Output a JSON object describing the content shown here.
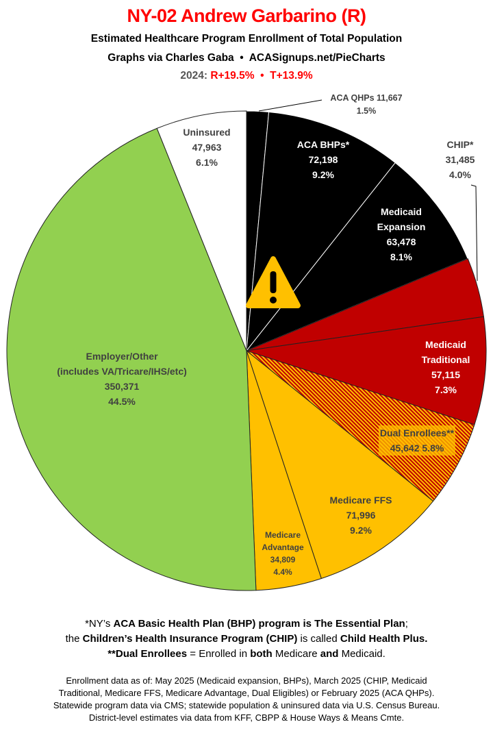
{
  "header": {
    "title": "NY-02 Andrew Garbarino (R)",
    "subtitle": "Estimated Healthcare Program Enrollment of Total Population",
    "credit": "Graphs via Charles Gaba  •  ACASignups.net/PieCharts",
    "year_label": "2024:",
    "margins": "R+19.5%  •  T+13.9%"
  },
  "chart_data": {
    "type": "pie",
    "start": "top, clockwise",
    "slices": [
      {
        "label": "ACA QHPs",
        "value": 11667,
        "percent": "1.5%",
        "value_text": "11,667",
        "color": "#000000"
      },
      {
        "label": "ACA BHPs*",
        "value": 72198,
        "percent": "9.2%",
        "value_text": "72,198",
        "color": "#000000"
      },
      {
        "label": "Medicaid Expansion",
        "value": 63478,
        "percent": "8.1%",
        "value_text": "63,478",
        "color": "#000000"
      },
      {
        "label": "CHIP*",
        "value": 31485,
        "percent": "4.0%",
        "value_text": "31,485",
        "color": "#c00000"
      },
      {
        "label": "Medicaid Traditional",
        "value": 57115,
        "percent": "7.3%",
        "value_text": "57,115",
        "color": "#c00000"
      },
      {
        "label": "Dual Enrollees**",
        "value": 45642,
        "percent": "5.8%",
        "value_text": "45,642",
        "color": "hatched #c00000/#ffc000"
      },
      {
        "label": "Medicare FFS",
        "value": 71996,
        "percent": "9.2%",
        "value_text": "71,996",
        "color": "#ffc000"
      },
      {
        "label": "Medicare Advantage",
        "value": 34809,
        "percent": "4.4%",
        "value_text": "34,809",
        "color": "#ffc000"
      },
      {
        "label": "Employer/Other (includes VA/Tricare/IHS/etc)",
        "value": 350371,
        "percent": "44.5%",
        "value_text": "350,371",
        "color": "#92d050"
      },
      {
        "label": "Uninsured",
        "value": 47963,
        "percent": "6.1%",
        "value_text": "47,963",
        "color": "#ffffff"
      }
    ],
    "annotation_icon": "warning-triangle-icon"
  },
  "labels": {
    "qhp_name": "ACA QHPs 11,667",
    "qhp_pct": "1.5%",
    "bhp_name": "ACA BHPs*",
    "bhp_val": "72,198",
    "bhp_pct": "9.2%",
    "chip_name": "CHIP*",
    "chip_val": "31,485",
    "chip_pct": "4.0%",
    "exp_name1": "Medicaid",
    "exp_name2": "Expansion",
    "exp_val": "63,478",
    "exp_pct": "8.1%",
    "trad_name1": "Medicaid",
    "trad_name2": "Traditional",
    "trad_val": "57,115",
    "trad_pct": "7.3%",
    "dual_name": "Dual Enrollees**",
    "dual_val": "45,642 5.8%",
    "ffs_name": "Medicare FFS",
    "ffs_val": "71,996",
    "ffs_pct": "9.2%",
    "ma_name1": "Medicare",
    "ma_name2": "Advantage",
    "ma_val": "34,809",
    "ma_pct": "4.4%",
    "emp_name1": "Employer/Other",
    "emp_name2": "(includes VA/Tricare/IHS/etc)",
    "emp_val": "350,371",
    "emp_pct": "44.5%",
    "unins_name": "Uninsured",
    "unins_val": "47,963",
    "unins_pct": "6.1%"
  },
  "notes": {
    "l1a": "*NY’s ",
    "l1b": "ACA Basic Health Plan (BHP) program is The Essential Plan",
    ";": ";",
    "l2a": "the ",
    "l2b": "Children’s Health Insurance Program (CHIP)",
    "l2c": " is called ",
    "l2d": "Child Health Plus.",
    "l3a": "**Dual Enrollees",
    "l3b": " = Enrolled in ",
    "l3c": "both",
    "l3d": " Medicare ",
    "l3e": "and",
    "l3f": " Medicaid."
  },
  "sources": [
    "Enrollment data as of: May 2025 (Medicaid expansion, BHPs), March 2025 (CHIP, Medicaid",
    "Traditional, Medicare FFS, Medicare Advantage, Dual Eligibles) or February 2025 (ACA QHPs).",
    "Statewide program data via CMS; statewide population & uninsured data via U.S. Census Bureau.",
    "District-level estimates via data from KFF, CBPP & House Ways & Means Cmte."
  ]
}
